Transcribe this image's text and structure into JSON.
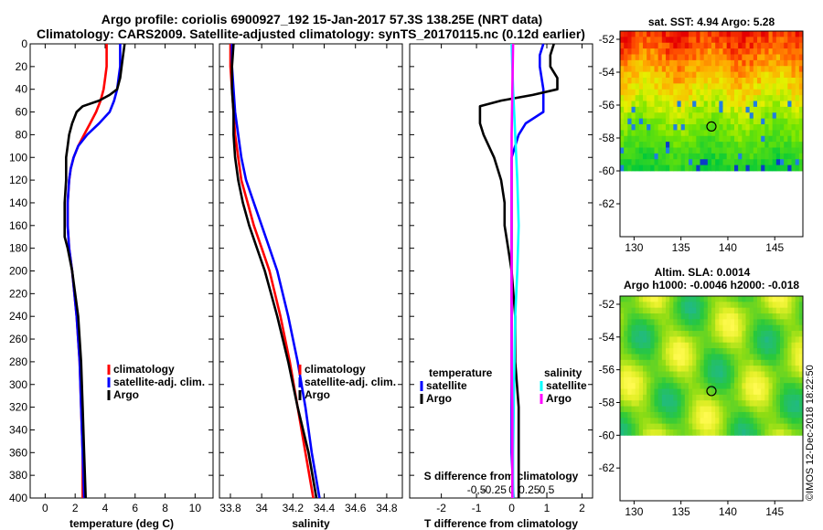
{
  "header": {
    "title_line1": "Argo profile: coriolis 6900927_192 15-Jan-2017 57.3S 138.25E (NRT data)",
    "title_line2": "Climatology: CARS2009. Satellite-adjusted climatology: synTS_20170115.nc (0.12d earlier)"
  },
  "colors": {
    "climatology": "#ff0000",
    "satellite": "#0000ff",
    "argo": "#000000",
    "satellite_salinity": "#00ffff",
    "argo_salinity": "#ff00ff"
  },
  "depth_axis": {
    "ticks": [
      0,
      20,
      40,
      60,
      80,
      100,
      120,
      140,
      160,
      180,
      200,
      220,
      240,
      260,
      280,
      300,
      320,
      340,
      360,
      380,
      400
    ],
    "ylim": [
      0,
      400
    ]
  },
  "chart_data": [
    {
      "type": "line",
      "id": "temperature",
      "xlabel": "temperature (deg C)",
      "xlim": [
        -1,
        11.2
      ],
      "xticks": [
        0,
        2,
        4,
        6,
        8,
        10
      ],
      "xticklabels": [
        "0",
        "2",
        "4",
        "6",
        "8",
        "10"
      ],
      "legend": {
        "placement": "center-right",
        "entries": [
          "climatology",
          "satellite-adj. clim.",
          "Argo"
        ]
      },
      "series": [
        {
          "name": "climatology",
          "color": "#ff0000",
          "depth": [
            0,
            10,
            20,
            30,
            40,
            50,
            60,
            70,
            80,
            90,
            100,
            110,
            120,
            140,
            160,
            180,
            200,
            240,
            280,
            320,
            360,
            400
          ],
          "values": [
            4.1,
            4.1,
            4.1,
            4.0,
            3.9,
            3.7,
            3.4,
            3.0,
            2.6,
            2.2,
            1.9,
            1.7,
            1.6,
            1.5,
            1.5,
            1.6,
            1.8,
            2.1,
            2.3,
            2.4,
            2.5,
            2.5
          ]
        },
        {
          "name": "satellite-adj. clim.",
          "color": "#0000ff",
          "depth": [
            0,
            10,
            20,
            30,
            40,
            50,
            60,
            70,
            80,
            90,
            100,
            110,
            120,
            140,
            160,
            180,
            200,
            240,
            280,
            320,
            360,
            400
          ],
          "values": [
            5.0,
            5.0,
            5.0,
            4.9,
            4.8,
            4.6,
            4.3,
            3.6,
            2.8,
            2.2,
            1.9,
            1.7,
            1.6,
            1.5,
            1.5,
            1.6,
            1.8,
            2.1,
            2.3,
            2.4,
            2.5,
            2.6
          ]
        },
        {
          "name": "Argo",
          "color": "#000000",
          "depth": [
            0,
            10,
            20,
            30,
            40,
            45,
            50,
            55,
            60,
            70,
            80,
            90,
            100,
            110,
            120,
            140,
            160,
            170,
            180,
            200,
            240,
            280,
            320,
            360,
            400
          ],
          "values": [
            5.3,
            5.2,
            5.1,
            5.0,
            4.8,
            4.3,
            3.6,
            2.5,
            2.1,
            1.8,
            1.6,
            1.5,
            1.4,
            1.4,
            1.4,
            1.3,
            1.3,
            1.3,
            1.5,
            1.8,
            2.2,
            2.4,
            2.5,
            2.6,
            2.7
          ]
        }
      ]
    },
    {
      "type": "line",
      "id": "salinity",
      "xlabel": "salinity",
      "xlim": [
        33.73,
        34.9
      ],
      "xticks": [
        33.8,
        34,
        34.2,
        34.4,
        34.6,
        34.8
      ],
      "xticklabels": [
        "33.8",
        "34",
        "34.2",
        "34.4",
        "34.6",
        "34.8"
      ],
      "legend": {
        "placement": "center-right",
        "entries": [
          "climatology",
          "satellite-adj. clim.",
          "Argo"
        ]
      },
      "series": [
        {
          "name": "climatology",
          "color": "#ff0000",
          "depth": [
            0,
            20,
            40,
            60,
            80,
            100,
            120,
            140,
            160,
            180,
            200,
            240,
            280,
            320,
            360,
            400
          ],
          "values": [
            33.8,
            33.8,
            33.81,
            33.82,
            33.83,
            33.85,
            33.87,
            33.91,
            33.95,
            34.0,
            34.05,
            34.12,
            34.18,
            34.23,
            34.28,
            34.33
          ]
        },
        {
          "name": "satellite-adj. clim.",
          "color": "#0000ff",
          "depth": [
            0,
            20,
            40,
            60,
            80,
            100,
            120,
            140,
            160,
            180,
            200,
            240,
            280,
            320,
            360,
            400
          ],
          "values": [
            33.81,
            33.81,
            33.82,
            33.83,
            33.85,
            33.87,
            33.9,
            33.95,
            34.0,
            34.05,
            34.1,
            34.17,
            34.23,
            34.28,
            34.32,
            34.37
          ]
        },
        {
          "name": "Argo",
          "color": "#000000",
          "depth": [
            0,
            20,
            40,
            60,
            80,
            100,
            120,
            140,
            160,
            180,
            200,
            240,
            280,
            320,
            360,
            400
          ],
          "values": [
            33.82,
            33.81,
            33.81,
            33.82,
            33.82,
            33.83,
            33.85,
            33.88,
            33.92,
            33.97,
            34.02,
            34.1,
            34.17,
            34.23,
            34.3,
            34.35
          ]
        }
      ]
    },
    {
      "type": "line",
      "id": "difference",
      "xlabel": "T difference from climatology",
      "xlabel2": "S difference from climatology",
      "xlim": [
        -2.9,
        2.3
      ],
      "xticks": [
        -2,
        -1,
        0,
        1,
        2
      ],
      "xticklabels": [
        "-2",
        "-1",
        "0",
        "1",
        "2"
      ],
      "xticks_s": [
        -0.5,
        -0.25,
        0,
        0.25,
        0.5
      ],
      "xticklabels_s": [
        "-0,5",
        "-0.25",
        "0",
        "0.25",
        "0,5"
      ],
      "legend": {
        "temperature_header": "temperature",
        "salinity_header": "salinity",
        "temperature_entries": [
          "satellite",
          "Argo"
        ],
        "salinity_entries": [
          "satellite",
          "Argo"
        ]
      },
      "series": [
        {
          "name": "temperature satellite",
          "color": "#0000ff",
          "depth": [
            0,
            10,
            20,
            40,
            60,
            70,
            80,
            100,
            120,
            160,
            200,
            240,
            280,
            320,
            360,
            400
          ],
          "values": [
            0.9,
            0.8,
            0.8,
            0.9,
            0.9,
            0.4,
            0.2,
            0.0,
            0.0,
            0.0,
            0.0,
            0.0,
            0.0,
            0.0,
            0.0,
            0.05
          ]
        },
        {
          "name": "temperature Argo",
          "color": "#000000",
          "depth": [
            0,
            10,
            20,
            30,
            40,
            45,
            50,
            55,
            60,
            70,
            80,
            100,
            120,
            140,
            160,
            180,
            200,
            240,
            280,
            320,
            360,
            400
          ],
          "values": [
            1.2,
            1.1,
            1.1,
            1.3,
            1.3,
            0.6,
            -0.3,
            -0.9,
            -0.9,
            -0.9,
            -0.8,
            -0.5,
            -0.3,
            -0.2,
            -0.2,
            -0.1,
            0.0,
            0.1,
            0.1,
            0.2,
            0.2,
            0.2
          ]
        },
        {
          "name": "salinity satellite",
          "color": "#00ffff",
          "depth": [
            0,
            40,
            80,
            120,
            160,
            200,
            240,
            280,
            320,
            360,
            400
          ],
          "values": [
            0.0,
            0.02,
            0.05,
            0.08,
            0.1,
            0.08,
            0.05,
            0.04,
            0.03,
            0.02,
            0.02
          ]
        },
        {
          "name": "salinity Argo",
          "color": "#ff00ff",
          "depth": [
            0,
            40,
            80,
            120,
            160,
            200,
            240,
            280,
            320,
            360,
            400
          ],
          "values": [
            0.02,
            0.01,
            0.0,
            0.0,
            0.0,
            0.0,
            0.0,
            0.0,
            0.01,
            0.01,
            0.01
          ]
        }
      ]
    },
    {
      "type": "heatmap",
      "id": "sst_map",
      "title": "sat. SST: 4.94 Argo: 5.28",
      "xlim": [
        128.5,
        148
      ],
      "ylim": [
        -64,
        -51.5
      ],
      "xticks": [
        130,
        135,
        140,
        145
      ],
      "xticklabels": [
        "130",
        "135",
        "140",
        "145"
      ],
      "yticks": [
        -52,
        -54,
        -56,
        -58,
        -60,
        -62
      ],
      "yticklabels": [
        "-52",
        "-54",
        "-56",
        "-58",
        "-60",
        "-62"
      ],
      "data_lat_range": [
        -60,
        -51.5
      ],
      "marker": {
        "lon": 138.25,
        "lat": -57.3
      }
    },
    {
      "type": "heatmap",
      "id": "sla_map",
      "title": "Altim. SLA: 0.0014",
      "subtitle": "Argo h1000: -0.0046 h2000: -0.018",
      "xlim": [
        128.5,
        148
      ],
      "ylim": [
        -64,
        -51.5
      ],
      "xticks": [
        130,
        135,
        140,
        145
      ],
      "xticklabels": [
        "130",
        "135",
        "140",
        "145"
      ],
      "yticks": [
        -52,
        -54,
        -56,
        -58,
        -60,
        -62
      ],
      "yticklabels": [
        "-52",
        "-54",
        "-56",
        "-58",
        "-60",
        "-62"
      ],
      "data_lat_range": [
        -60,
        -51.5
      ],
      "marker": {
        "lon": 138.25,
        "lat": -57.3
      }
    }
  ],
  "footer": {
    "credit": "©IMOS 12-Dec-2018 18:22:50"
  }
}
